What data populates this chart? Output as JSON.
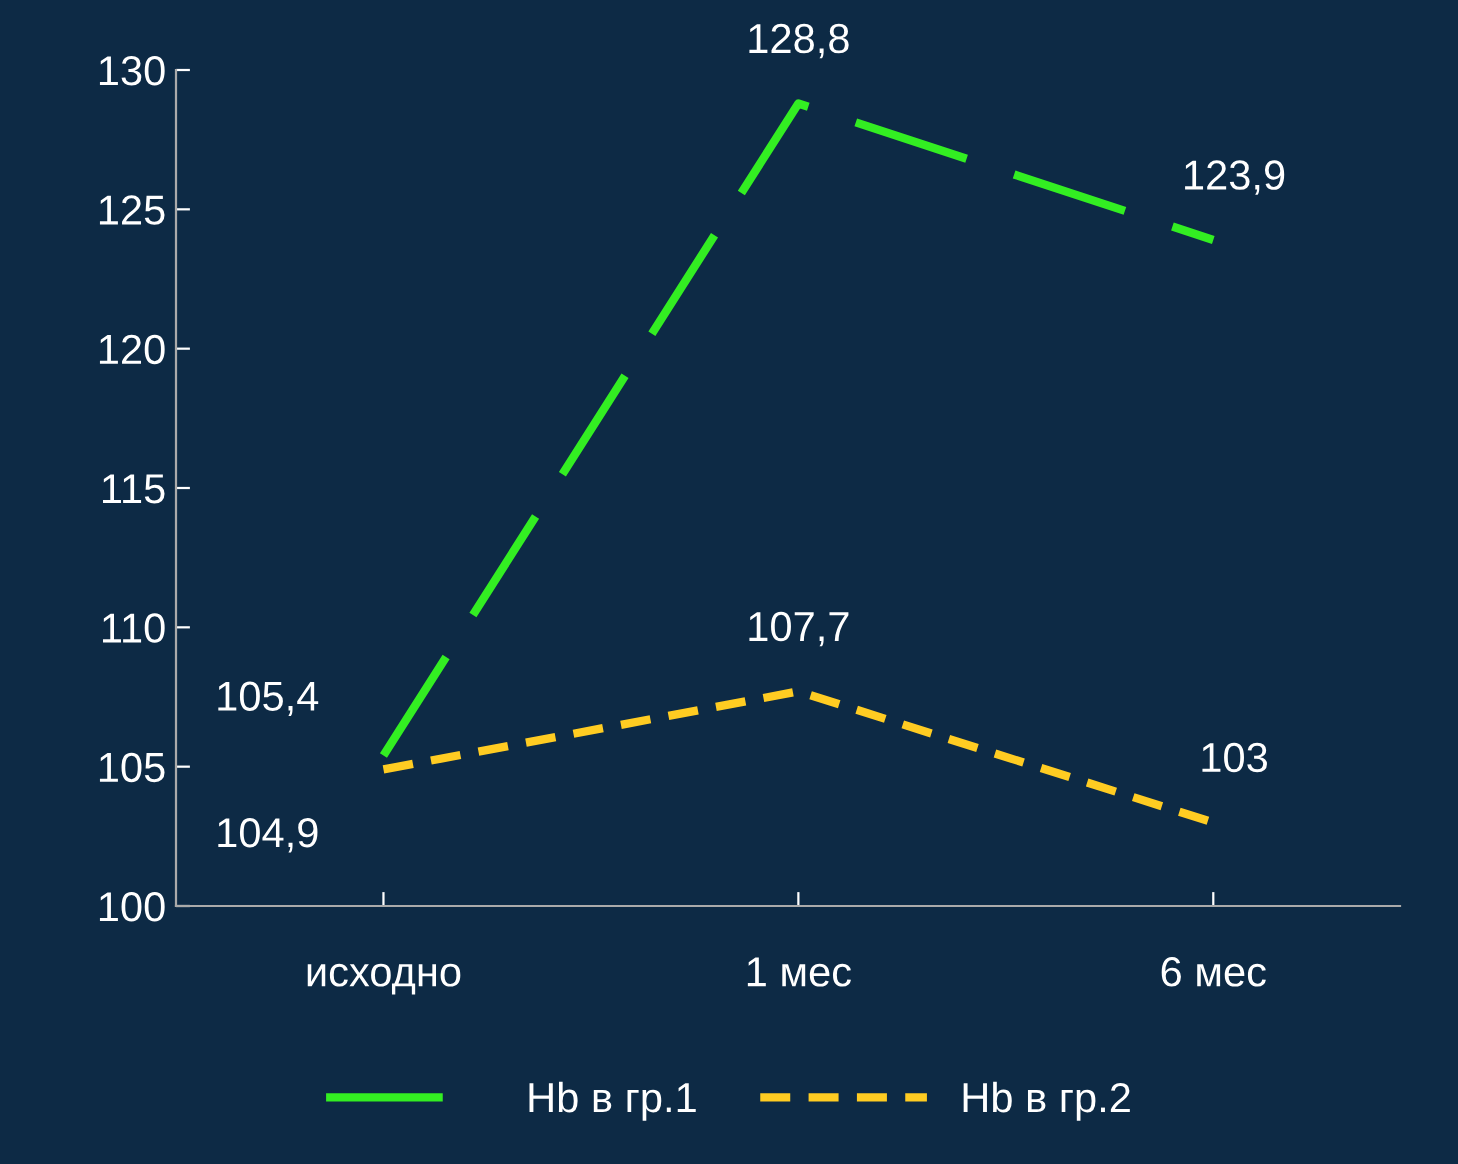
{
  "chart_data": {
    "type": "line",
    "categories": [
      "исходно",
      "1 мес",
      "6 мес"
    ],
    "series": [
      {
        "name": "Hb в гр.1",
        "color": "#33ee22",
        "values": [
          105.4,
          128.8,
          123.9
        ],
        "value_labels": [
          "105,4",
          "128,8",
          "123,9"
        ],
        "line_style": "dashed"
      },
      {
        "name": "Hb в гр.2",
        "color": "#ffcc22",
        "values": [
          104.9,
          107.7,
          103
        ],
        "value_labels": [
          "104,9",
          "107,7",
          "103"
        ],
        "line_style": "dashed"
      }
    ],
    "ylim": [
      100,
      130
    ],
    "yticks": [
      100,
      105,
      110,
      115,
      120,
      125,
      130
    ],
    "grid": false,
    "legend": "bottom",
    "marker": "none"
  }
}
